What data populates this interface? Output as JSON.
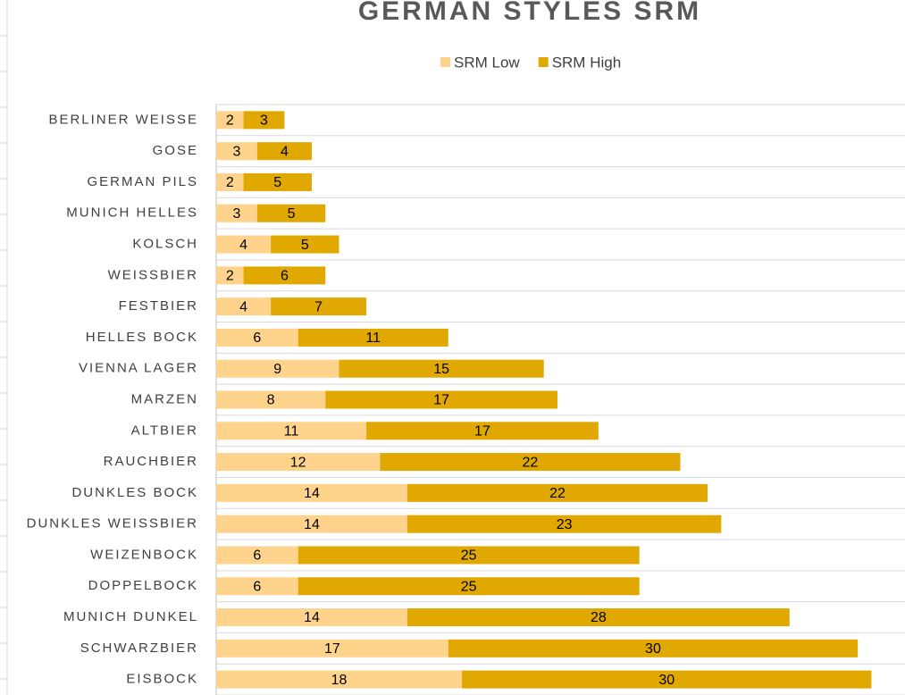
{
  "chart_data": {
    "type": "bar",
    "orientation": "horizontal",
    "stacked": true,
    "title": "GERMAN STYLES SRM",
    "categories": [
      "BERLINER WEISSE",
      "GOSE",
      "GERMAN PILS",
      "MUNICH HELLES",
      "KOLSCH",
      "WEISSBIER",
      "FESTBIER",
      "HELLES BOCK",
      "VIENNA LAGER",
      "MARZEN",
      "ALTBIER",
      "RAUCHBIER",
      "DUNKLES BOCK",
      "DUNKLES WEISSBIER",
      "WEIZENBOCK",
      "DOPPELBOCK",
      "MUNICH DUNKEL",
      "SCHWARZBIER",
      "EISBOCK"
    ],
    "series": [
      {
        "name": "SRM Low",
        "color": "#ffd38c",
        "values": [
          2,
          3,
          2,
          3,
          4,
          2,
          4,
          6,
          9,
          8,
          11,
          12,
          14,
          14,
          6,
          6,
          14,
          17,
          18
        ]
      },
      {
        "name": "SRM High",
        "color": "#e0a800",
        "values": [
          3,
          4,
          5,
          5,
          5,
          6,
          7,
          11,
          15,
          17,
          17,
          22,
          22,
          23,
          25,
          25,
          28,
          30,
          30
        ]
      }
    ],
    "xlim": [
      0,
      50
    ],
    "legend": "top",
    "grid": true
  }
}
